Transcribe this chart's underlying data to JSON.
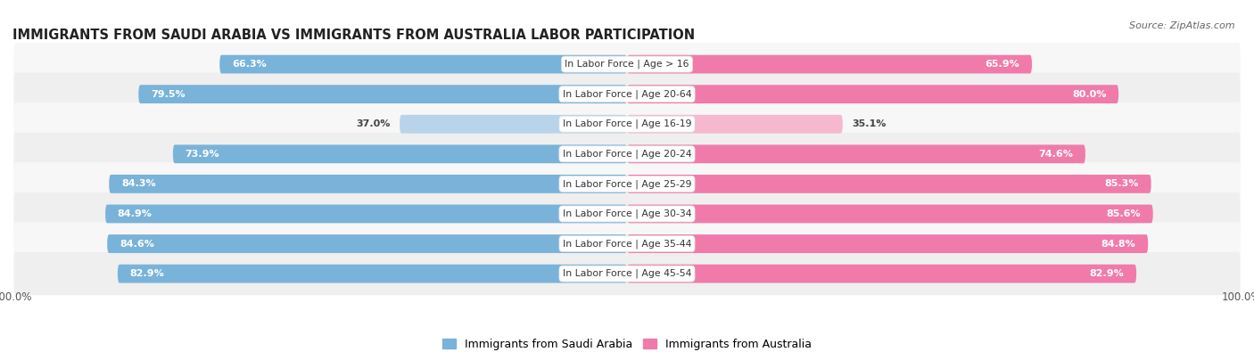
{
  "title": "IMMIGRANTS FROM SAUDI ARABIA VS IMMIGRANTS FROM AUSTRALIA LABOR PARTICIPATION",
  "source": "Source: ZipAtlas.com",
  "categories": [
    "In Labor Force | Age > 16",
    "In Labor Force | Age 20-64",
    "In Labor Force | Age 16-19",
    "In Labor Force | Age 20-24",
    "In Labor Force | Age 25-29",
    "In Labor Force | Age 30-34",
    "In Labor Force | Age 35-44",
    "In Labor Force | Age 45-54"
  ],
  "saudi_values": [
    66.3,
    79.5,
    37.0,
    73.9,
    84.3,
    84.9,
    84.6,
    82.9
  ],
  "australia_values": [
    65.9,
    80.0,
    35.1,
    74.6,
    85.3,
    85.6,
    84.8,
    82.9
  ],
  "saudi_color": "#7ab3d9",
  "saudi_color_light": "#b8d4ea",
  "australia_color": "#f07baa",
  "australia_color_light": "#f5b8cf",
  "row_bg_odd": "#f7f7f7",
  "row_bg_even": "#efefef",
  "max_val": 100.0,
  "legend_saudi": "Immigrants from Saudi Arabia",
  "legend_australia": "Immigrants from Australia",
  "title_fontsize": 10.5,
  "label_fontsize": 7.8,
  "val_fontsize": 8.0,
  "tick_fontsize": 8.5,
  "source_fontsize": 8.0
}
